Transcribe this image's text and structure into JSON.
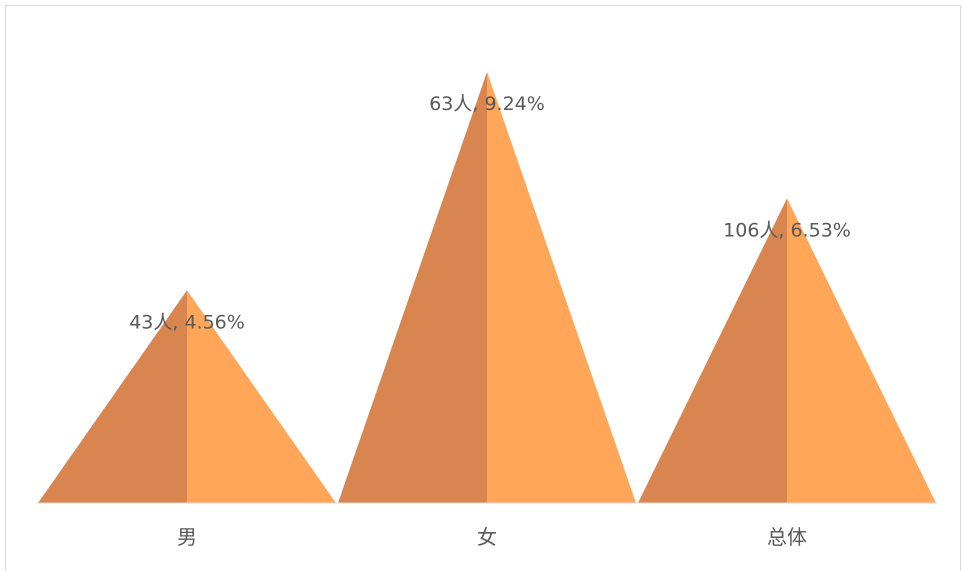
{
  "chart_data": {
    "type": "bar",
    "subtype": "triangle-column",
    "categories": [
      "男",
      "女",
      "总体"
    ],
    "values": [
      43,
      63,
      106
    ],
    "percentages": [
      4.56,
      9.24,
      6.53
    ],
    "data_labels": [
      "43人, 4.56%",
      "63人, 9.24%",
      "106人, 6.53%"
    ],
    "title": "",
    "xlabel": "",
    "ylabel": "",
    "grid": false,
    "legend": "none",
    "colors": {
      "shadow_face": "#d98550",
      "light_face": "#ffa659",
      "axis_line": "#d9d9d9",
      "label_text": "#595959"
    }
  }
}
